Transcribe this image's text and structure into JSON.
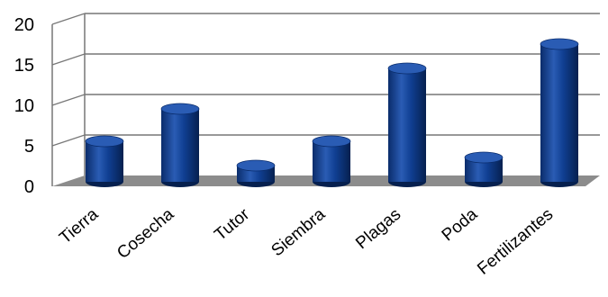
{
  "chart_data": {
    "type": "bar",
    "style": "3d-cylinder",
    "title": "",
    "xlabel": "",
    "ylabel": "",
    "categories": [
      "Tierra",
      "Cosecha",
      "Tutor",
      "Siembra",
      "Plagas",
      "Poda",
      "Fertilizantes"
    ],
    "values": [
      5,
      9,
      2,
      5,
      14,
      3,
      17
    ],
    "ylim": [
      0,
      20
    ],
    "yticks": [
      "0",
      "5",
      "10",
      "15",
      "20"
    ],
    "grid": true,
    "legend": "none",
    "colors": {
      "bar": "#0d3a8a",
      "bar_highlight": "#2f5fb8",
      "floor": "#8c8c8c",
      "grid": "#777777"
    }
  }
}
